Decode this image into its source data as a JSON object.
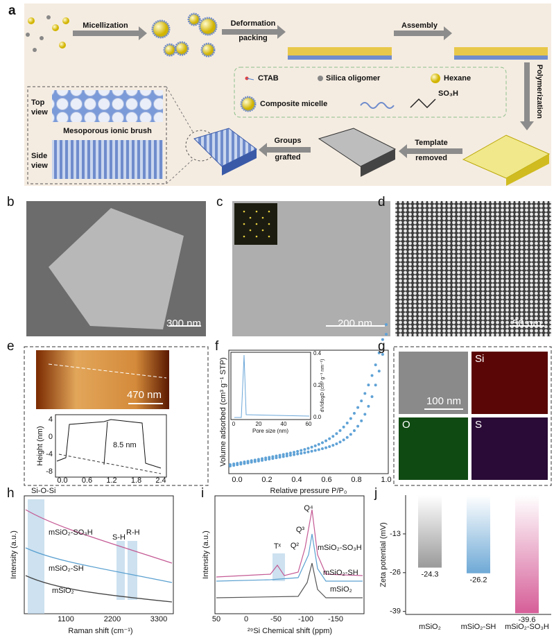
{
  "panel_labels": [
    "a",
    "b",
    "c",
    "d",
    "e",
    "f",
    "g",
    "h",
    "i",
    "j"
  ],
  "a": {
    "steps": {
      "micellization": "Micellization",
      "deformation": "Deformation",
      "packing": "packing",
      "assembly": "Assembly",
      "polymerization": "Polymerization",
      "template": "Template",
      "removed": "removed",
      "groups": "Groups",
      "grafted": "grafted"
    },
    "legend": {
      "ctab": "CTAB",
      "silica": "Silica oligomer",
      "hexane": "Hexane",
      "composite": "Composite micelle",
      "so3h": "SO₃H"
    },
    "views": {
      "top": "Top",
      "top_view": "view",
      "title": "Mesoporous ionic brush",
      "side": "Side",
      "side_view": "view"
    }
  },
  "b": {
    "scale": "300 nm"
  },
  "c": {
    "scale": "200 nm"
  },
  "d": {
    "scale": "50 nm"
  },
  "e": {
    "scale": "470 nm",
    "ylabel": "Height (nm)",
    "yticks": [
      "4",
      "0",
      "-4",
      "-8"
    ],
    "xticks": [
      "0.0",
      "0.6",
      "1.2",
      "1.8",
      "2.4"
    ],
    "annotation": "8.5 nm"
  },
  "f": {
    "ylabel": "Volume adsorbed (cm³ g⁻¹ STP)",
    "xlabel": "Relative pressure P/P₀",
    "xticks": [
      "0.0",
      "0.2",
      "0.4",
      "0.6",
      "0.8",
      "1.0"
    ],
    "inset": {
      "xlabel": "Pore size (nm)",
      "xticks": [
        "0",
        "20",
        "40",
        "60"
      ],
      "ylabel": "dV/dlogD (cm³ g⁻¹ nm⁻¹)",
      "yticks": [
        "0.4",
        "0.2",
        "0.0"
      ]
    }
  },
  "g": {
    "scale": "100 nm",
    "elements": [
      "Si",
      "O",
      "S"
    ]
  },
  "h": {
    "ylabel": "Intensity (a.u.)",
    "xlabel": "Raman shift (cm⁻¹)",
    "xticks": [
      "1100",
      "2200",
      "3300"
    ],
    "labels": {
      "sios": "Si-O-Si",
      "so3h": "mSiO₂-SO₃H",
      "sh": "mSiO₂-SH",
      "base": "mSiO₂",
      "s_h": "S-H",
      "r_h": "R-H"
    }
  },
  "i": {
    "ylabel": "Intensity (a.u.)",
    "xlabel": "²⁹Si Chemical shift (ppm)",
    "xticks": [
      "50",
      "0",
      "-50",
      "-100",
      "-150"
    ],
    "labels": {
      "tx": "Tˣ",
      "q4": "Q⁴",
      "q3": "Q³",
      "q2": "Q²",
      "so3h": "mSiO₂-SO₃H",
      "sh": "mSiO₂-SH",
      "base": "mSiO₂"
    }
  },
  "chart_data": {
    "type": "bar",
    "ylabel": "Zeta potential (mV)",
    "categories": [
      "mSiO₂",
      "mSiO₂-SH",
      "mSiO₂-SO₃H"
    ],
    "values": [
      -24.3,
      -26.2,
      -39.6
    ],
    "colors": [
      "#9a9a9a",
      "#6ea9d6",
      "#d65e98"
    ],
    "ylim": [
      -40,
      0
    ],
    "yticks": [
      -13,
      -26,
      -39
    ]
  }
}
